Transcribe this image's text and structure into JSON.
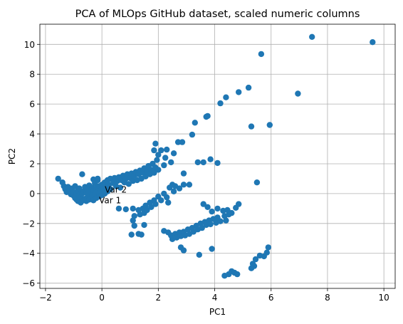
{
  "chart_data": {
    "type": "scatter",
    "title": "PCA of MLOps GitHub dataset, scaled numeric columns",
    "xlabel": "PC1",
    "ylabel": "PC2",
    "xlim": [
      -2.2,
      10.4
    ],
    "ylim": [
      -6.35,
      11.35
    ],
    "xticks": [
      -2,
      0,
      2,
      4,
      6,
      8,
      10
    ],
    "yticks": [
      -6,
      -4,
      -2,
      0,
      2,
      4,
      6,
      8,
      10
    ],
    "grid": true,
    "marker_color": "#1f77b4",
    "annotations": [
      {
        "text": "Var 2",
        "x": 0.1,
        "y": 0.25
      },
      {
        "text": "Var 1",
        "x": -0.1,
        "y": -0.45
      }
    ],
    "points": [
      [
        -1.55,
        1.0
      ],
      [
        -1.4,
        0.75
      ],
      [
        -1.35,
        0.5
      ],
      [
        -1.3,
        0.3
      ],
      [
        -1.25,
        0.1
      ],
      [
        -1.2,
        0.45
      ],
      [
        -1.15,
        0.2
      ],
      [
        -1.1,
        -0.05
      ],
      [
        -1.05,
        0.35
      ],
      [
        -1.0,
        -0.15
      ],
      [
        -1.0,
        0.1
      ],
      [
        -0.95,
        -0.3
      ],
      [
        -0.95,
        0.5
      ],
      [
        -0.9,
        0.0
      ],
      [
        -0.9,
        -0.4
      ],
      [
        -0.85,
        0.2
      ],
      [
        -0.85,
        -0.5
      ],
      [
        -0.8,
        -0.1
      ],
      [
        -0.8,
        0.35
      ],
      [
        -0.75,
        -0.6
      ],
      [
        -0.75,
        -0.25
      ],
      [
        -0.7,
        0.0
      ],
      [
        -0.7,
        1.3
      ],
      [
        -0.65,
        -0.45
      ],
      [
        -0.65,
        0.15
      ],
      [
        -0.6,
        -0.35
      ],
      [
        -0.6,
        0.45
      ],
      [
        -0.55,
        -0.5
      ],
      [
        -0.55,
        0.05
      ],
      [
        -0.5,
        -0.2
      ],
      [
        -0.5,
        0.3
      ],
      [
        -0.45,
        -0.4
      ],
      [
        -0.45,
        0.55
      ],
      [
        -0.4,
        0.1
      ],
      [
        -0.4,
        -0.3
      ],
      [
        -0.35,
        -0.15
      ],
      [
        -0.35,
        0.4
      ],
      [
        -0.3,
        -0.45
      ],
      [
        -0.3,
        0.2
      ],
      [
        -0.25,
        0.0
      ],
      [
        -0.25,
        0.7
      ],
      [
        -0.2,
        -0.3
      ],
      [
        -0.2,
        0.35
      ],
      [
        -0.15,
        0.1
      ],
      [
        -0.15,
        0.9
      ],
      [
        -0.1,
        -0.2
      ],
      [
        -0.1,
        0.5
      ],
      [
        -0.05,
        0.2
      ],
      [
        0.0,
        0.6
      ],
      [
        0.0,
        -0.1
      ],
      [
        0.05,
        0.3
      ],
      [
        0.1,
        0.75
      ],
      [
        0.1,
        0.0
      ],
      [
        0.15,
        0.45
      ],
      [
        0.2,
        0.9
      ],
      [
        0.2,
        0.15
      ],
      [
        -0.3,
        0.95
      ],
      [
        -0.15,
        1.0
      ],
      [
        0.25,
        0.6
      ],
      [
        0.3,
        1.0
      ],
      [
        0.3,
        0.3
      ],
      [
        0.4,
        0.7
      ],
      [
        0.45,
        1.05
      ],
      [
        0.5,
        0.5
      ],
      [
        0.55,
        0.85
      ],
      [
        0.6,
        1.1
      ],
      [
        0.65,
        0.4
      ],
      [
        0.7,
        0.9
      ],
      [
        0.75,
        1.2
      ],
      [
        0.8,
        0.75
      ],
      [
        0.85,
        1.0
      ],
      [
        0.9,
        1.3
      ],
      [
        0.95,
        0.65
      ],
      [
        1.0,
        1.05
      ],
      [
        1.05,
        1.35
      ],
      [
        1.1,
        0.85
      ],
      [
        1.15,
        1.2
      ],
      [
        1.2,
        1.45
      ],
      [
        1.25,
        0.9
      ],
      [
        1.3,
        1.3
      ],
      [
        1.35,
        1.55
      ],
      [
        1.4,
        1.0
      ],
      [
        1.45,
        1.4
      ],
      [
        1.5,
        1.7
      ],
      [
        1.55,
        1.15
      ],
      [
        1.6,
        1.5
      ],
      [
        1.65,
        1.85
      ],
      [
        1.7,
        1.3
      ],
      [
        1.75,
        1.6
      ],
      [
        1.8,
        2.0
      ],
      [
        1.85,
        1.4
      ],
      [
        1.9,
        1.75
      ],
      [
        1.95,
        2.25
      ],
      [
        2.0,
        1.6
      ],
      [
        2.0,
        2.6
      ],
      [
        2.1,
        2.9
      ],
      [
        1.85,
        2.9
      ],
      [
        1.9,
        3.35
      ],
      [
        2.2,
        1.9
      ],
      [
        2.25,
        2.4
      ],
      [
        2.3,
        2.95
      ],
      [
        2.45,
        2.1
      ],
      [
        2.55,
        2.7
      ],
      [
        2.7,
        3.45
      ],
      [
        2.85,
        3.45
      ],
      [
        3.2,
        3.95
      ],
      [
        3.3,
        4.75
      ],
      [
        3.7,
        5.15
      ],
      [
        3.75,
        5.2
      ],
      [
        4.2,
        6.05
      ],
      [
        4.4,
        6.45
      ],
      [
        4.85,
        6.8
      ],
      [
        5.2,
        7.1
      ],
      [
        5.65,
        9.35
      ],
      [
        6.95,
        6.7
      ],
      [
        7.45,
        10.5
      ],
      [
        9.6,
        10.15
      ],
      [
        3.4,
        2.1
      ],
      [
        3.6,
        2.1
      ],
      [
        3.85,
        2.3
      ],
      [
        4.1,
        2.05
      ],
      [
        2.9,
        1.35
      ],
      [
        2.9,
        0.6
      ],
      [
        3.1,
        0.6
      ],
      [
        5.3,
        4.5
      ],
      [
        5.95,
        4.6
      ],
      [
        5.5,
        0.75
      ],
      [
        0.6,
        -1.0
      ],
      [
        0.85,
        -1.05
      ],
      [
        1.1,
        -1.0
      ],
      [
        1.15,
        -1.5
      ],
      [
        1.3,
        -1.1
      ],
      [
        1.35,
        -1.4
      ],
      [
        1.45,
        -1.0
      ],
      [
        1.5,
        -1.3
      ],
      [
        1.55,
        -0.8
      ],
      [
        1.6,
        -1.1
      ],
      [
        1.7,
        -0.6
      ],
      [
        1.75,
        -0.9
      ],
      [
        1.85,
        -0.45
      ],
      [
        1.9,
        -0.7
      ],
      [
        2.0,
        -0.2
      ],
      [
        2.1,
        -0.45
      ],
      [
        2.2,
        0.0
      ],
      [
        2.3,
        -0.25
      ],
      [
        2.4,
        0.4
      ],
      [
        2.55,
        0.15
      ],
      [
        2.6,
        0.5
      ],
      [
        2.75,
        0.35
      ],
      [
        2.5,
        0.6
      ],
      [
        2.35,
        -0.6
      ],
      [
        1.1,
        -1.8
      ],
      [
        1.15,
        -2.15
      ],
      [
        1.05,
        -2.75
      ],
      [
        1.3,
        -2.7
      ],
      [
        1.4,
        -2.75
      ],
      [
        1.5,
        -2.1
      ],
      [
        2.2,
        -2.5
      ],
      [
        2.35,
        -2.6
      ],
      [
        2.45,
        -2.8
      ],
      [
        2.5,
        -3.05
      ],
      [
        2.6,
        -2.7
      ],
      [
        2.65,
        -2.95
      ],
      [
        2.75,
        -2.6
      ],
      [
        2.8,
        -2.85
      ],
      [
        2.9,
        -2.55
      ],
      [
        2.95,
        -2.8
      ],
      [
        3.05,
        -2.4
      ],
      [
        3.1,
        -2.7
      ],
      [
        3.2,
        -2.3
      ],
      [
        3.25,
        -2.55
      ],
      [
        3.35,
        -2.15
      ],
      [
        3.4,
        -2.4
      ],
      [
        3.5,
        -2.0
      ],
      [
        3.55,
        -2.3
      ],
      [
        3.65,
        -1.9
      ],
      [
        3.7,
        -2.1
      ],
      [
        3.8,
        -1.8
      ],
      [
        3.85,
        -2.05
      ],
      [
        3.95,
        -1.7
      ],
      [
        4.05,
        -1.95
      ],
      [
        4.1,
        -1.6
      ],
      [
        4.2,
        -1.85
      ],
      [
        4.35,
        -1.5
      ],
      [
        4.4,
        -1.8
      ],
      [
        4.5,
        -1.4
      ],
      [
        4.6,
        -1.3
      ],
      [
        4.75,
        -0.95
      ],
      [
        4.85,
        -0.7
      ],
      [
        4.1,
        -1.0
      ],
      [
        4.3,
        -1.15
      ],
      [
        3.9,
        -1.2
      ],
      [
        3.6,
        -0.7
      ],
      [
        3.75,
        -0.9
      ],
      [
        4.45,
        -1.1
      ],
      [
        2.8,
        -3.6
      ],
      [
        2.9,
        -3.8
      ],
      [
        3.45,
        -4.1
      ],
      [
        3.9,
        -3.7
      ],
      [
        4.35,
        -5.5
      ],
      [
        4.5,
        -5.4
      ],
      [
        4.6,
        -5.2
      ],
      [
        4.7,
        -5.3
      ],
      [
        4.8,
        -5.4
      ],
      [
        5.35,
        -4.7
      ],
      [
        5.45,
        -4.4
      ],
      [
        5.6,
        -4.15
      ],
      [
        5.75,
        -4.2
      ],
      [
        5.85,
        -3.95
      ],
      [
        5.9,
        -3.6
      ],
      [
        5.4,
        -4.85
      ],
      [
        5.3,
        -5.0
      ]
    ]
  }
}
